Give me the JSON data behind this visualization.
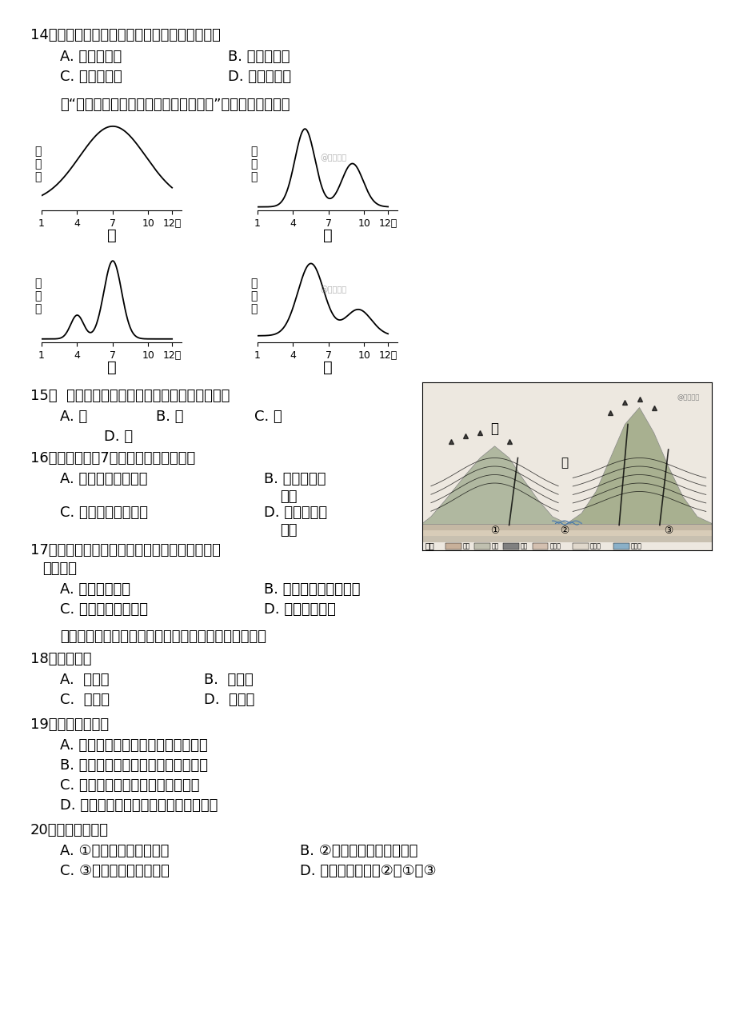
{
  "bg_color": "#ffffff",
  "q14_text": "14．在下列节气中，符台北京白昼逐渐变短的是",
  "q14_A": "A. 惊蛵至清明",
  "q14_B": "B. 小满至小暑",
  "q14_C": "C. 大暑至处暑",
  "q14_D": "D. 大雪至小寒",
  "intro": "读“我国不同地区河流径流量过程示意图”，回答下列各题。",
  "graph_labels": [
    "甲",
    "乙",
    "丙",
    "丁"
  ],
  "ylabel": "径\n流\n量",
  "x_ticks": [
    "1",
    "4",
    "7",
    "10",
    "12月"
  ],
  "q15_text": "15．  图中反映华北地区河流径流量变化特征的是",
  "q15_A": "A. 甲",
  "q15_B": "B. 乙",
  "q15_C": "C. 丙",
  "q15_D": "D. 丁",
  "q16_text": "16．导致乙河流7月径流量骤减的原因是",
  "q16_A": "A. 北太平洋副高衰弱",
  "q16_B": "B. 伏旱天气的\n影响",
  "q16_C": "C. 亚洲高压势力增强",
  "q16_D": "D. 准静止锋的\n影响",
  "q17_text": "17．近年来图中甲河流下游含沙量变大，最可能\n的原因是",
  "q17_A": "A. 下游流量变小",
  "q17_B": "B. 上游植被覆盖率下降",
  "q17_C": "C. 区域内降水量减小",
  "q17_D": "D. 上游修建水库",
  "sec2_intro": "结合我国某区域地貌景观和地质剖面图，回答下列各题",
  "q18_text": "18．图中甲是",
  "q18_A": "A.  背斜山",
  "q18_B": "B.  背斜谷",
  "q18_C": "C.  向斜山",
  "q18_D": "D.  向斜谷",
  "q19_text": "19．下列正确的为",
  "q19_A": "A. 图中地貌的形成只与外力作用有关",
  "q19_B": "B. 图中地貌的形成只与板块张裂有关",
  "q19_C": "C. 甲、乙两座山脉的形成原因相同",
  "q19_D": "D. 丙河流的形成与断层处岐体破碎有关",
  "q20_text": "20．下列正确的是",
  "q20_A": "A. ①处为良好的储水构造",
  "q20_B": "B. ②处可能形成于干旱环境",
  "q20_C": "C. ③处可能含有生物化石",
  "q20_D": "D. 形成时间顺序为②、①、③"
}
